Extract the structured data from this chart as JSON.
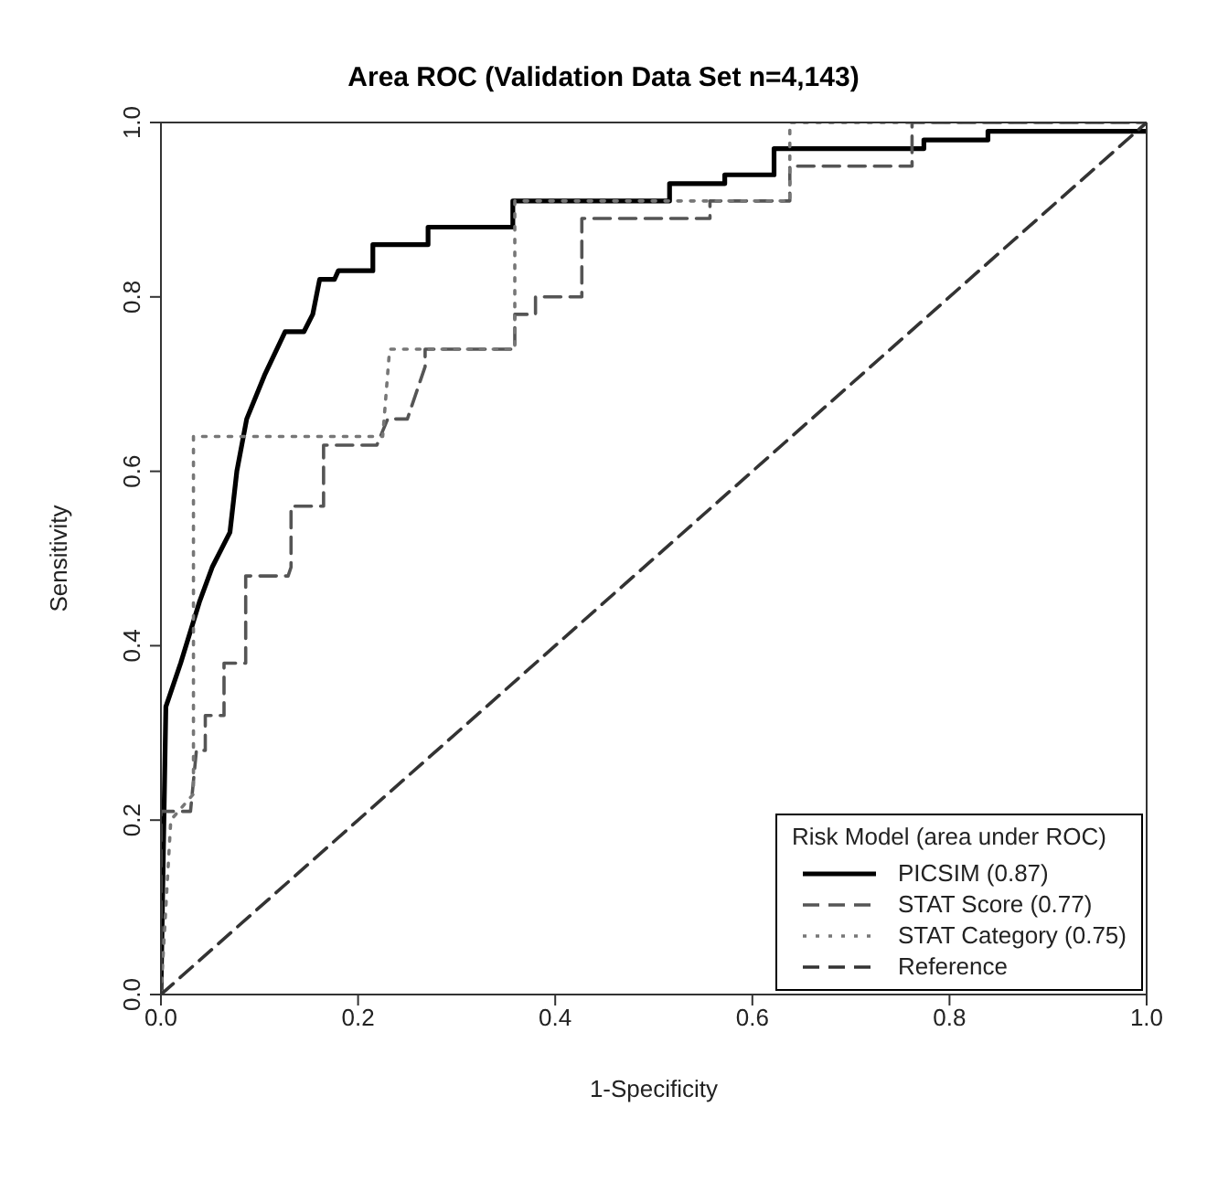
{
  "chart_data": {
    "type": "line",
    "title": "Area ROC (Validation Data Set n=4,143)",
    "xlabel": "1-Specificity",
    "ylabel": "Sensitivity",
    "legend_title": "Risk Model (area under ROC)",
    "legend": "bottom right",
    "grid": false,
    "marker": "none",
    "xlim": [
      0,
      1
    ],
    "ylim": [
      0,
      1
    ],
    "xticks": [
      {
        "value": 0,
        "label": "0.0"
      },
      {
        "value": 0.2,
        "label": "0.2"
      },
      {
        "value": 0.4,
        "label": "0.4"
      },
      {
        "value": 0.6,
        "label": "0.6"
      },
      {
        "value": 0.8,
        "label": "0.8"
      },
      {
        "value": 1,
        "label": "1.0"
      }
    ],
    "yticks": [
      {
        "value": 0,
        "label": "0.0"
      },
      {
        "value": 0.2,
        "label": "0.2"
      },
      {
        "value": 0.4,
        "label": "0.4"
      },
      {
        "value": 0.6,
        "label": "0.6"
      },
      {
        "value": 0.8,
        "label": "0.8"
      },
      {
        "value": 1,
        "label": "1.0"
      }
    ],
    "series": [
      {
        "name": "PICSIM (0.87)",
        "color": "#000000",
        "line_style": "solid",
        "x": [
          0,
          0.003,
          0.005,
          0.02,
          0.039,
          0.052,
          0.07,
          0.077,
          0.087,
          0.105,
          0.126,
          0.145,
          0.154,
          0.161,
          0.176,
          0.18,
          0.215,
          0.215,
          0.271,
          0.271,
          0.357,
          0.357,
          0.516,
          0.516,
          0.572,
          0.572,
          0.622,
          0.622,
          0.774,
          0.774,
          0.839,
          0.839,
          1
        ],
        "values": [
          0,
          0.2,
          0.33,
          0.38,
          0.45,
          0.49,
          0.53,
          0.6,
          0.66,
          0.71,
          0.76,
          0.76,
          0.78,
          0.82,
          0.82,
          0.83,
          0.83,
          0.86,
          0.86,
          0.88,
          0.88,
          0.91,
          0.91,
          0.93,
          0.93,
          0.94,
          0.94,
          0.97,
          0.97,
          0.98,
          0.98,
          0.99,
          0.99
        ]
      },
      {
        "name": "STAT Score (0.77)",
        "color": "#555555",
        "line_style": "dashed",
        "x": [
          0,
          0,
          0.03,
          0.036,
          0.045,
          0.045,
          0.064,
          0.064,
          0.086,
          0.086,
          0.129,
          0.132,
          0.132,
          0.165,
          0.165,
          0.219,
          0.23,
          0.25,
          0.268,
          0.268,
          0.359,
          0.359,
          0.38,
          0.38,
          0.427,
          0.427,
          0.557,
          0.557,
          0.638,
          0.638,
          0.762,
          0.762,
          1
        ],
        "values": [
          0,
          0.21,
          0.21,
          0.28,
          0.28,
          0.32,
          0.32,
          0.38,
          0.38,
          0.48,
          0.48,
          0.49,
          0.56,
          0.56,
          0.63,
          0.63,
          0.66,
          0.66,
          0.72,
          0.74,
          0.74,
          0.78,
          0.78,
          0.8,
          0.8,
          0.89,
          0.89,
          0.91,
          0.91,
          0.95,
          0.95,
          1,
          1
        ]
      },
      {
        "name": "STAT Category (0.75)",
        "color": "#777777",
        "line_style": "dotted",
        "x": [
          0,
          0.01,
          0.033,
          0.033,
          0.225,
          0.232,
          0.359,
          0.359,
          0.638,
          0.638,
          1
        ],
        "values": [
          0,
          0.2,
          0.23,
          0.64,
          0.64,
          0.74,
          0.74,
          0.91,
          0.91,
          1,
          1
        ]
      },
      {
        "name": "Reference",
        "color": "#333333",
        "line_style": "dashed",
        "x": [
          0,
          1
        ],
        "values": [
          0,
          1
        ]
      }
    ]
  }
}
